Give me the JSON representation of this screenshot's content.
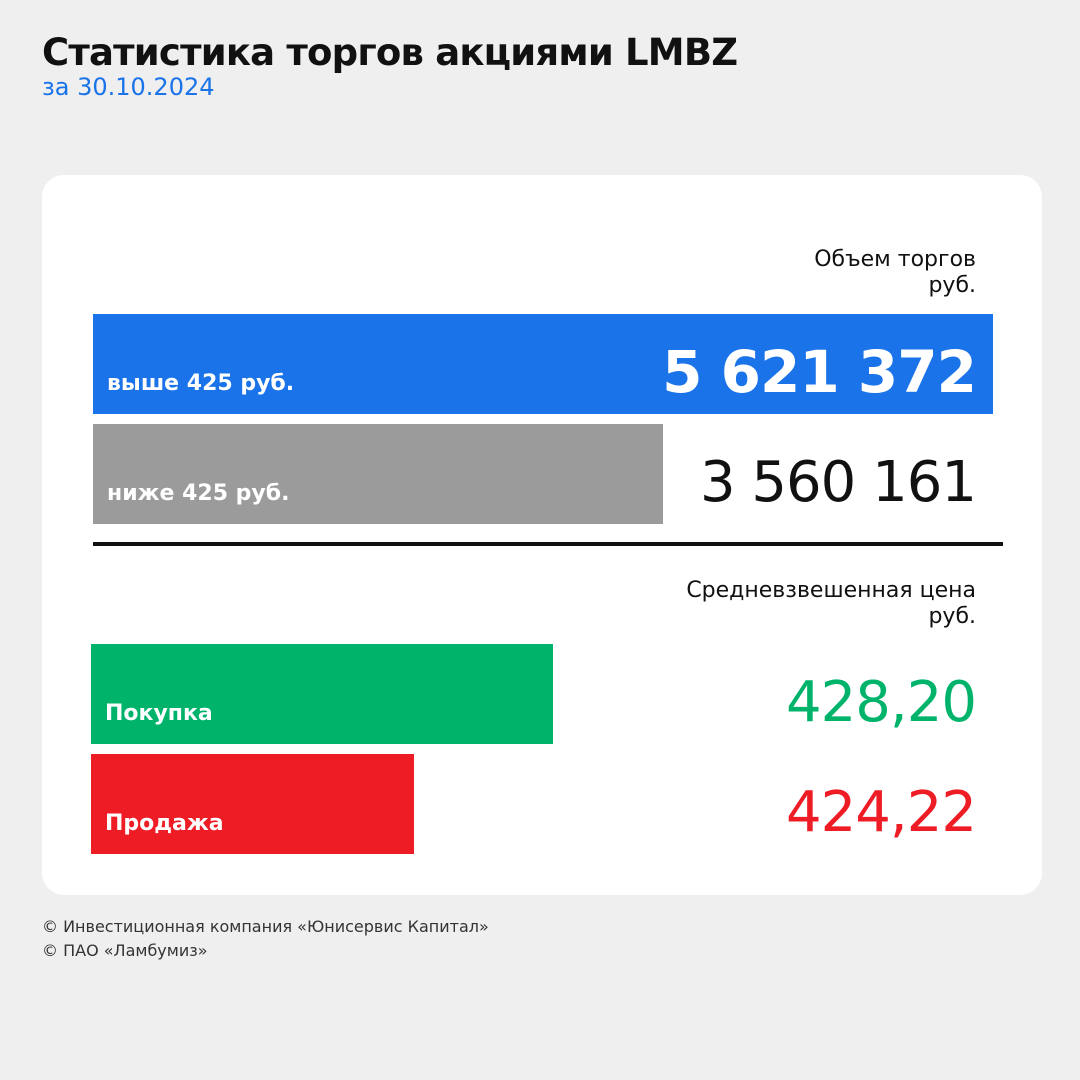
{
  "header": {
    "title": "Статистика торгов акциями LMBZ",
    "subtitle": "за 30.10.2024"
  },
  "volume": {
    "heading": "Объем торгов",
    "unit": "руб.",
    "bars": [
      {
        "label": "выше 425 руб.",
        "value_text": "5 621 372",
        "value": 5621372,
        "color": "#1a73e8",
        "value_color": "#ffffff"
      },
      {
        "label": "ниже 425 руб.",
        "value_text": "3 560 161",
        "value": 3560161,
        "color": "#9b9b9b",
        "value_color": "#111111"
      }
    ]
  },
  "price": {
    "heading": "Средневзвешенная цена",
    "unit": "руб.",
    "bars": [
      {
        "label": "Покупка",
        "value_text": "428,20",
        "value": 428.2,
        "color": "#00b36b",
        "value_color": "#00b36b"
      },
      {
        "label": "Продажа",
        "value_text": "424,22",
        "value": 424.22,
        "color": "#ee1c25",
        "value_color": "#ee1c25"
      }
    ]
  },
  "footer": {
    "line1": "© Инвестиционная компания «Юнисервис Капитал»",
    "line2": "© ПАО «Ламбумиз»"
  },
  "chart_data": [
    {
      "type": "bar",
      "title": "Объем торгов",
      "ylabel": "руб.",
      "categories": [
        "выше 425 руб.",
        "ниже 425 руб."
      ],
      "values": [
        5621372,
        3560161
      ]
    },
    {
      "type": "bar",
      "title": "Средневзвешенная цена",
      "ylabel": "руб.",
      "categories": [
        "Покупка",
        "Продажа"
      ],
      "values": [
        428.2,
        424.22
      ]
    }
  ]
}
